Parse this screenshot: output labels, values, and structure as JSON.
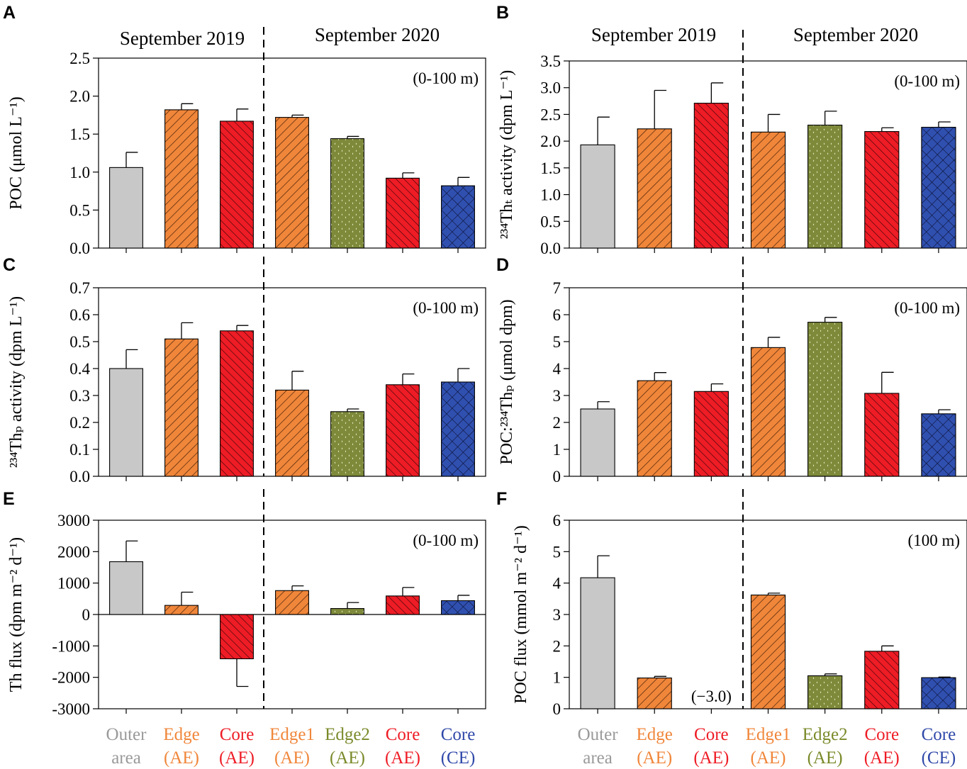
{
  "colors": {
    "grey": "#c8c8c8",
    "orange": "#f0863a",
    "red": "#ee1c25",
    "olive": "#7e8a3a",
    "blue": "#3050b0",
    "grey_text": "#9a9a9a",
    "edge2_text": "#7a8a2a",
    "blue_text": "#2f48a8"
  },
  "headers": {
    "sep2019": "September 2019",
    "sep2020": "September 2020"
  },
  "categories": [
    {
      "line1": "Outer",
      "line2": "area",
      "color": "grey_text"
    },
    {
      "line1": "Edge",
      "line2": "(AE)",
      "color": "orange"
    },
    {
      "line1": "Core",
      "line2": "(AE)",
      "color": "red"
    },
    {
      "line1": "Edge1",
      "line2": "(AE)",
      "color": "orange"
    },
    {
      "line1": "Edge2",
      "line2": "(AE)",
      "color": "edge2_text"
    },
    {
      "line1": "Core",
      "line2": "(AE)",
      "color": "red"
    },
    {
      "line1": "Core",
      "line2": "(CE)",
      "color": "blue_text"
    }
  ],
  "chart_data": [
    {
      "panel": "A",
      "type": "bar",
      "ylabel": "POC (μmol L⁻¹)",
      "depth_label": "(0-100 m)",
      "ylim": [
        0,
        2.5
      ],
      "yticks": [
        "0.0",
        "0.5",
        "1.0",
        "1.5",
        "2.0",
        "2.5"
      ],
      "values": [
        1.06,
        1.82,
        1.67,
        1.72,
        1.44,
        0.92,
        0.82
      ],
      "errors": [
        0.2,
        0.08,
        0.16,
        0.03,
        0.03,
        0.07,
        0.11
      ]
    },
    {
      "panel": "B",
      "type": "bar",
      "ylabel": "²³⁴Thₜ activity (dpm L⁻¹)",
      "depth_label": "(0-100 m)",
      "ylim": [
        0,
        3.5
      ],
      "yticks": [
        "0.0",
        "0.5",
        "1.0",
        "1.5",
        "2.0",
        "2.5",
        "3.0",
        "3.5"
      ],
      "values": [
        1.93,
        2.23,
        2.71,
        2.17,
        2.3,
        2.18,
        2.26
      ],
      "errors": [
        0.52,
        0.72,
        0.38,
        0.33,
        0.26,
        0.07,
        0.1
      ]
    },
    {
      "panel": "C",
      "type": "bar",
      "ylabel": "²³⁴Thₚ activity (dpm L⁻¹)",
      "depth_label": "(0-100 m)",
      "ylim": [
        0,
        0.7
      ],
      "yticks": [
        "0.0",
        "0.1",
        "0.2",
        "0.3",
        "0.4",
        "0.5",
        "0.6",
        "0.7"
      ],
      "values": [
        0.4,
        0.51,
        0.54,
        0.32,
        0.24,
        0.34,
        0.35
      ],
      "errors": [
        0.07,
        0.06,
        0.02,
        0.07,
        0.01,
        0.04,
        0.05
      ]
    },
    {
      "panel": "D",
      "type": "bar",
      "ylabel": "POC:²³⁴Thₚ (μmol dpm)",
      "depth_label": "(0-100 m)",
      "ylim": [
        0,
        7
      ],
      "yticks": [
        "0",
        "1",
        "2",
        "3",
        "4",
        "5",
        "6",
        "7"
      ],
      "values": [
        2.5,
        3.55,
        3.15,
        4.78,
        5.72,
        3.08,
        2.32
      ],
      "errors": [
        0.27,
        0.3,
        0.28,
        0.38,
        0.18,
        0.78,
        0.15
      ]
    },
    {
      "panel": "E",
      "type": "bar",
      "ylabel": "Th flux (dpm m⁻² d⁻¹)",
      "depth_label": "(0-100 m)",
      "ylim": [
        -3000,
        3000
      ],
      "yticks": [
        "-3000",
        "-2000",
        "-1000",
        "0",
        "1000",
        "2000",
        "3000"
      ],
      "values": [
        1680,
        290,
        -1410,
        760,
        190,
        590,
        440
      ],
      "errors": [
        660,
        420,
        880,
        150,
        190,
        270,
        170
      ]
    },
    {
      "panel": "F",
      "type": "bar",
      "ylabel": "POC flux (mmol m⁻² d⁻¹)",
      "depth_label": "(100 m)",
      "ylim": [
        0,
        6
      ],
      "yticks": [
        "0",
        "1",
        "2",
        "3",
        "4",
        "5",
        "6"
      ],
      "values": [
        4.17,
        0.98,
        null,
        3.62,
        1.05,
        1.83,
        0.99
      ],
      "errors": [
        0.7,
        0.05,
        null,
        0.06,
        0.06,
        0.17,
        0.02
      ],
      "missing_value_label": "(−3.0)"
    }
  ]
}
